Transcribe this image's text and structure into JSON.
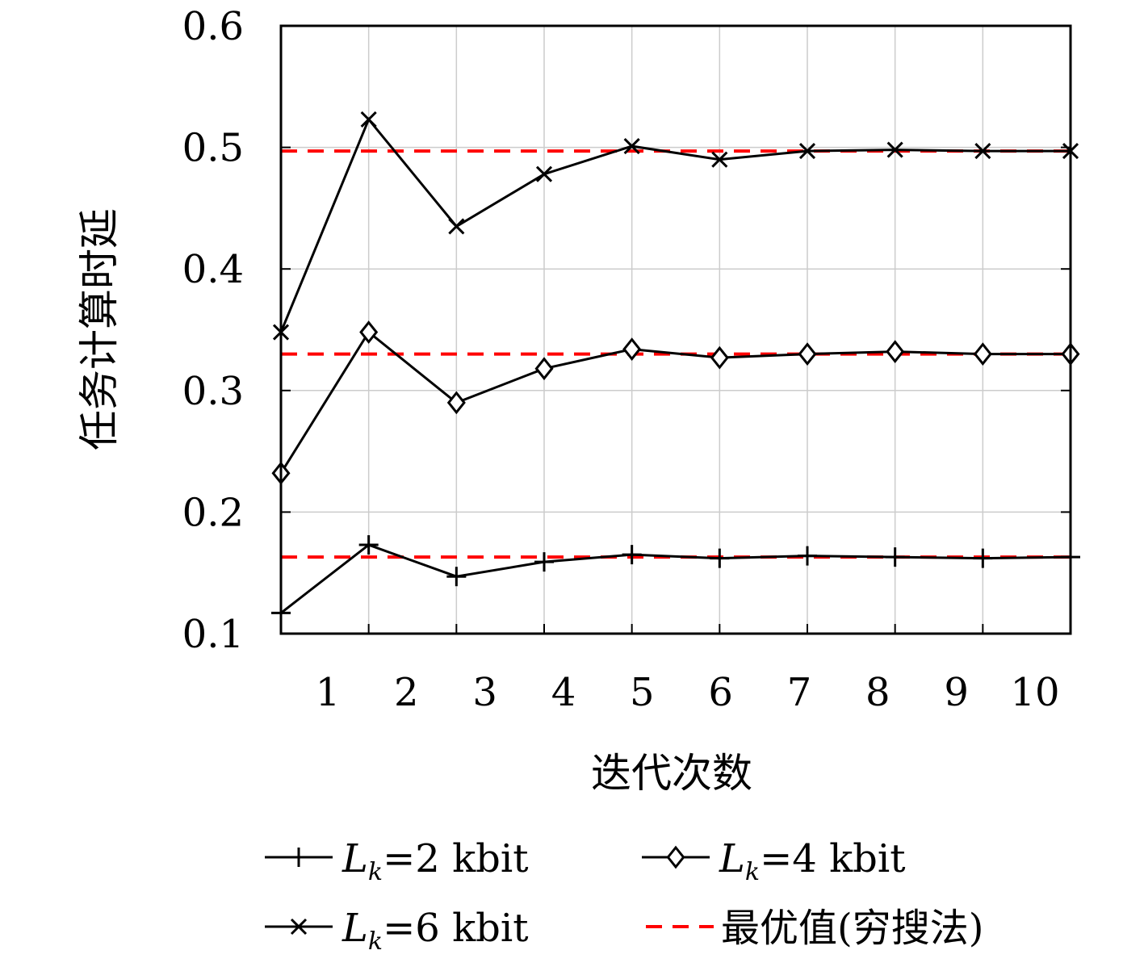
{
  "chart_data": {
    "type": "line",
    "title": "",
    "xlabel": "迭代次数",
    "ylabel": "任务计算时延",
    "x_ticks": [
      "1",
      "2",
      "3",
      "4",
      "5",
      "6",
      "7",
      "8",
      "9",
      "10"
    ],
    "y_ticks": [
      "0.1",
      "0.2",
      "0.3",
      "0.4",
      "0.5",
      "0.6"
    ],
    "xlim": [
      0,
      9
    ],
    "ylim": [
      0.1,
      0.6
    ],
    "grid": true,
    "legend_position": "bottom",
    "series": [
      {
        "name": "Lk=2 kbit",
        "legend_parts": {
          "symbol": "L",
          "subscript": "k",
          "rest": "=2 kbit"
        },
        "marker": "plus",
        "color": "#000000",
        "x": [
          0,
          1,
          2,
          3,
          4,
          5,
          6,
          7,
          8,
          9
        ],
        "values": [
          0.117,
          0.173,
          0.147,
          0.159,
          0.165,
          0.162,
          0.164,
          0.163,
          0.162,
          0.163
        ]
      },
      {
        "name": "Lk=4 kbit",
        "legend_parts": {
          "symbol": "L",
          "subscript": "k",
          "rest": "=4 kbit"
        },
        "marker": "diamond",
        "color": "#000000",
        "x": [
          0,
          1,
          2,
          3,
          4,
          5,
          6,
          7,
          8,
          9
        ],
        "values": [
          0.232,
          0.348,
          0.29,
          0.318,
          0.334,
          0.327,
          0.33,
          0.332,
          0.33,
          0.33
        ]
      },
      {
        "name": "Lk=6 kbit",
        "legend_parts": {
          "symbol": "L",
          "subscript": "k",
          "rest": "=6 kbit"
        },
        "marker": "x",
        "color": "#000000",
        "x": [
          0,
          1,
          2,
          3,
          4,
          5,
          6,
          7,
          8,
          9
        ],
        "values": [
          0.348,
          0.523,
          0.435,
          0.478,
          0.501,
          0.49,
          0.497,
          0.498,
          0.497,
          0.497
        ]
      }
    ],
    "reference_lines": [
      {
        "name": "最优值(穷搜法)",
        "color": "#ff0000",
        "style": "dashed",
        "values": [
          0.163,
          0.33,
          0.497
        ]
      }
    ]
  }
}
